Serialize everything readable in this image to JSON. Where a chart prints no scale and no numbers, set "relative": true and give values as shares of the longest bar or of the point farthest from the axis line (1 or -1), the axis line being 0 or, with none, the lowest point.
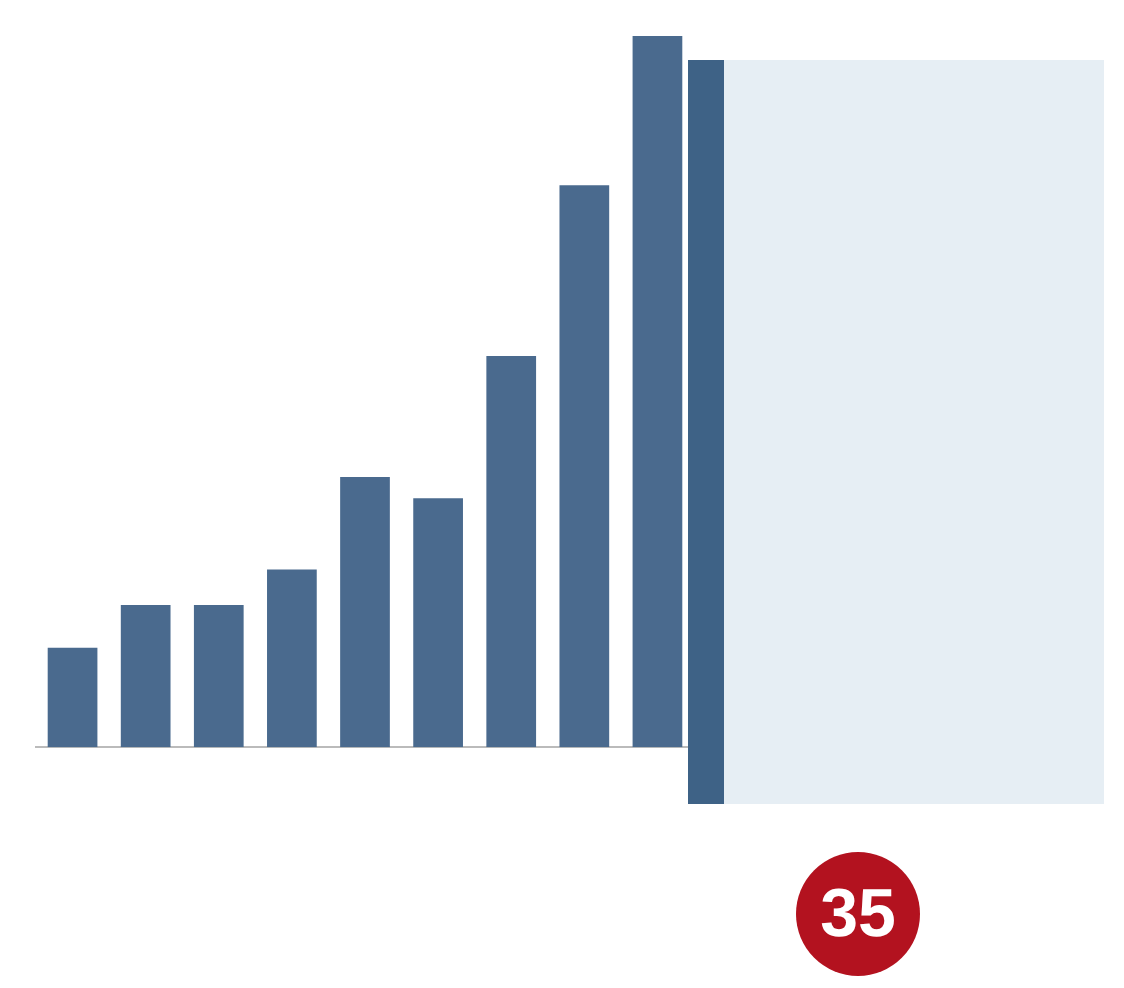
{
  "chart_data": {
    "type": "bar",
    "relative": true,
    "categories": [
      null,
      null,
      null,
      null,
      null,
      null,
      null,
      null,
      null
    ],
    "values": [
      0.14,
      0.2,
      0.2,
      0.25,
      0.38,
      0.35,
      0.55,
      0.79,
      1
    ],
    "color": "#4a6a8e",
    "grid": false,
    "legend": false,
    "annotations": [
      "35"
    ]
  }
}
